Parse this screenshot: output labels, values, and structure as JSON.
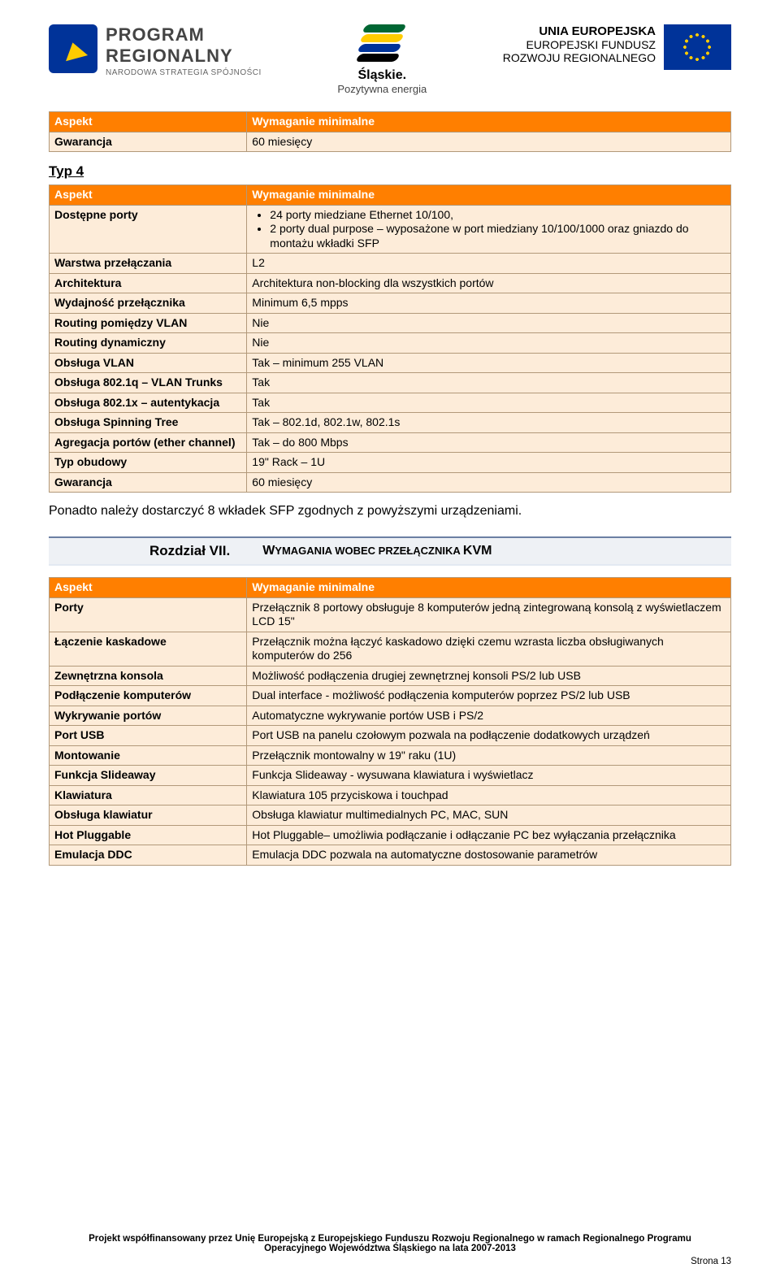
{
  "header": {
    "program_title": "PROGRAM",
    "program_title2": "REGIONALNY",
    "program_sub": "NARODOWA STRATEGIA SPÓJNOŚCI",
    "slaskie_title": "Śląskie.",
    "slaskie_sub": "Pozytywna energia",
    "eu_title": "UNIA EUROPEJSKA",
    "eu_sub1": "EUROPEJSKI FUNDUSZ",
    "eu_sub2": "ROZWOJU REGIONALNEGO"
  },
  "table1": {
    "h1": "Aspekt",
    "h2": "Wymaganie minimalne",
    "r1a": "Gwarancja",
    "r1b": "60 miesięcy"
  },
  "typ4": "Typ 4",
  "table2": {
    "h1": "Aspekt",
    "h2": "Wymaganie minimalne",
    "r1a": "Dostępne porty",
    "r1b1": "24 porty miedziane Ethernet 10/100,",
    "r1b2": "2 porty dual purpose – wyposażone w port miedziany 10/100/1000 oraz gniazdo do montażu wkładki SFP",
    "r2a": "Warstwa przełączania",
    "r2b": "L2",
    "r3a": "Architektura",
    "r3b": "Architektura non-blocking dla wszystkich portów",
    "r4a": "Wydajność przełącznika",
    "r4b": "Minimum 6,5 mpps",
    "r5a": "Routing pomiędzy VLAN",
    "r5b": "Nie",
    "r6a": "Routing dynamiczny",
    "r6b": "Nie",
    "r7a": "Obsługa VLAN",
    "r7b": "Tak – minimum 255 VLAN",
    "r8a": "Obsługa 802.1q – VLAN Trunks",
    "r8b": "Tak",
    "r9a": "Obsługa 802.1x – autentykacja",
    "r9b": "Tak",
    "r10a": "Obsługa Spinning Tree",
    "r10b": "Tak – 802.1d, 802.1w, 802.1s",
    "r11a": "Agregacja portów (ether channel)",
    "r11b": "Tak – do 800 Mbps",
    "r12a": "Typ obudowy",
    "r12b": "19\" Rack – 1U",
    "r13a": "Gwarancja",
    "r13b": "60 miesięcy"
  },
  "para": "Ponadto należy dostarczyć 8 wkładek SFP zgodnych z powyższymi urządzeniami.",
  "chapter": {
    "num": "Rozdział VII.",
    "title_pre": "W",
    "title_sc": "YMAGANIA WOBEC PRZEŁĄCZNIKA ",
    "title_end": "KVM"
  },
  "table3": {
    "h1": "Aspekt",
    "h2": "Wymaganie minimalne",
    "r1a": "Porty",
    "r1b": "Przełącznik 8 portowy obsługuje 8 komputerów jedną zintegrowaną konsolą z wyświetlaczem LCD 15\"",
    "r2a": "Łączenie kaskadowe",
    "r2b": "Przełącznik można łączyć kaskadowo dzięki czemu wzrasta liczba obsługiwanych komputerów do 256",
    "r3a": "Zewnętrzna konsola",
    "r3b": "Możliwość podłączenia drugiej zewnętrznej konsoli PS/2 lub USB",
    "r4a": "Podłączenie komputerów",
    "r4b": "Dual interface - możliwość podłączenia komputerów poprzez PS/2 lub USB",
    "r5a": "Wykrywanie portów",
    "r5b": "Automatyczne wykrywanie portów USB i PS/2",
    "r6a": "Port USB",
    "r6b": "Port USB na panelu czołowym pozwala na podłączenie dodatkowych urządzeń",
    "r7a": "Montowanie",
    "r7b": "Przełącznik montowalny w 19\" raku (1U)",
    "r8a": "Funkcja Slideaway",
    "r8b": "Funkcja Slideaway - wysuwana klawiatura i wyświetlacz",
    "r9a": "Klawiatura",
    "r9b": "Klawiatura 105 przyciskowa i touchpad",
    "r10a": "Obsługa klawiatur",
    "r10b": "Obsługa klawiatur multimedialnych PC, MAC, SUN",
    "r11a": "Hot Pluggable",
    "r11b": "Hot Pluggable– umożliwia podłączanie i odłączanie PC bez wyłączania przełącznika",
    "r12a": "Emulacja DDC",
    "r12b": "Emulacja DDC pozwala na automatyczne dostosowanie parametrów"
  },
  "footer": {
    "l1": "Projekt współfinansowany przez Unię Europejską z Europejskiego Funduszu Rozwoju Regionalnego w ramach Regionalnego Programu",
    "l2": "Operacyjnego Województwa Śląskiego na lata 2007-2013",
    "page": "Strona 13"
  }
}
